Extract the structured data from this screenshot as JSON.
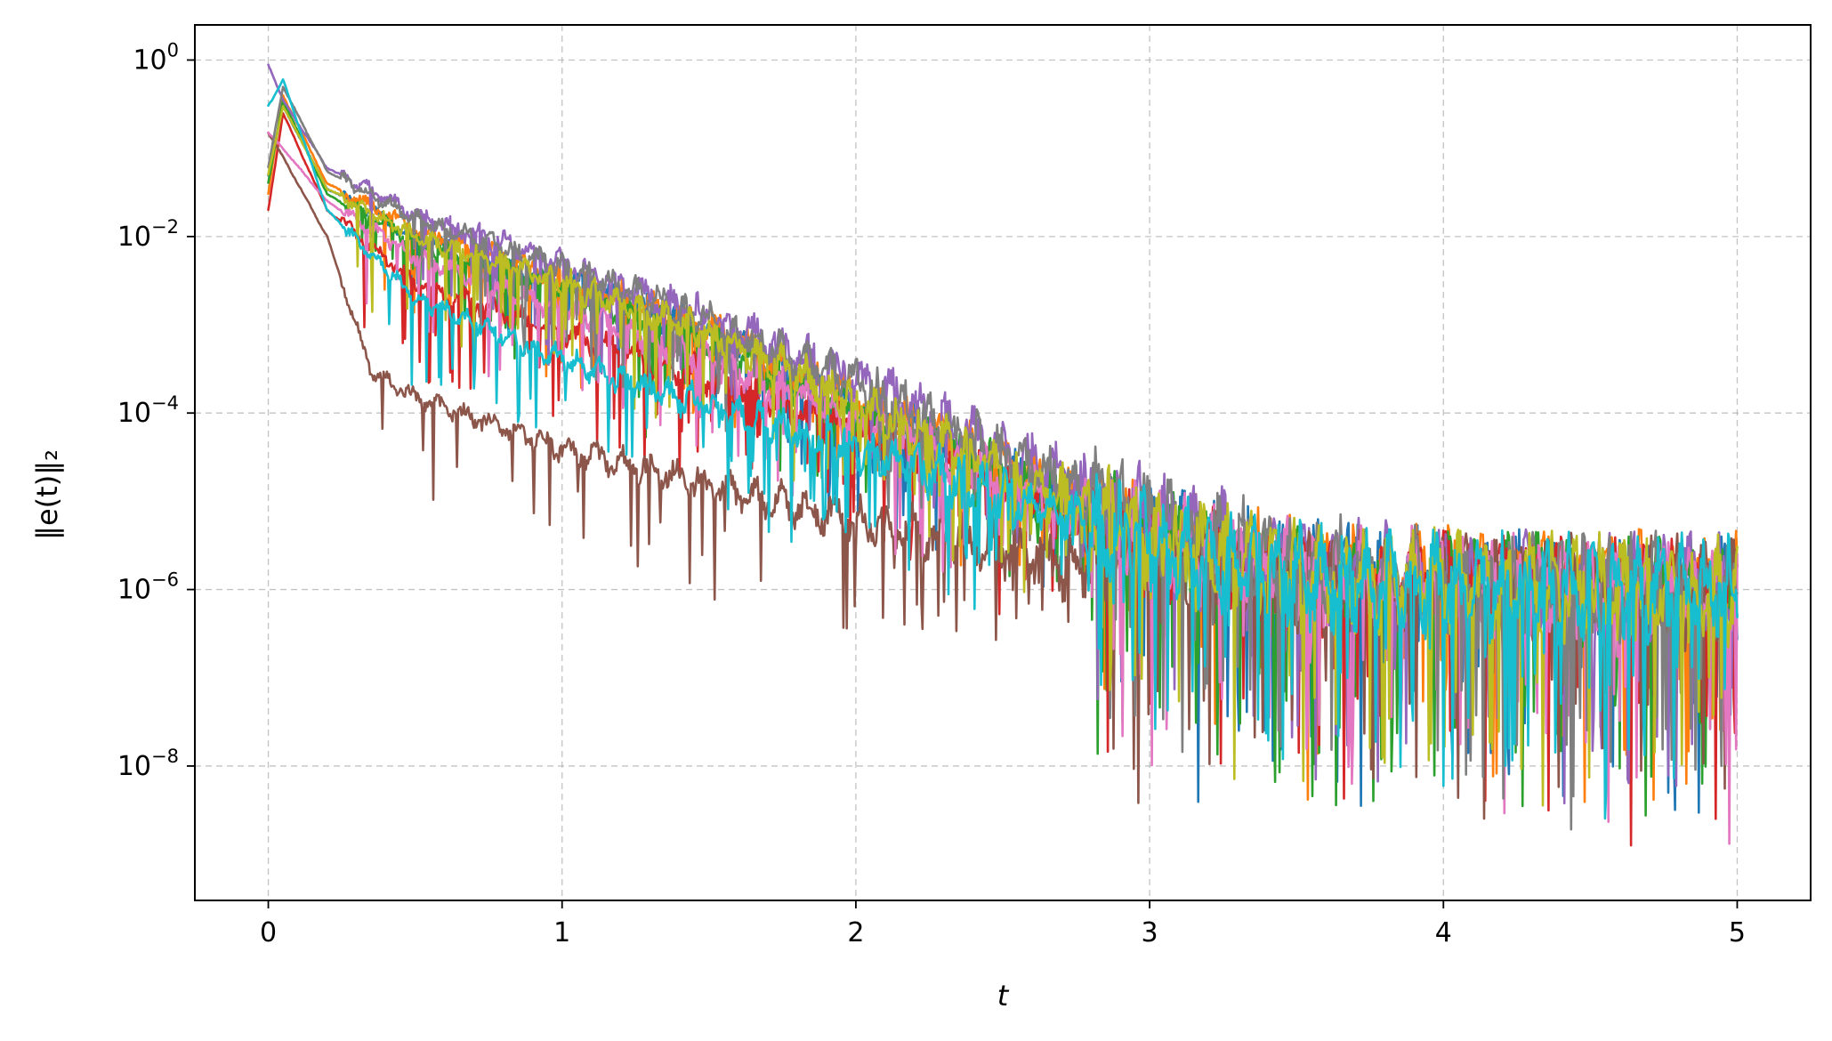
{
  "chart_data": {
    "type": "line",
    "title": "",
    "xlabel": "t",
    "ylabel": "‖e(t)‖₂",
    "xlim": [
      -0.25,
      5.25
    ],
    "ylim": [
      3e-10,
      2.5
    ],
    "x_ticks": [
      0,
      1,
      2,
      3,
      4,
      5
    ],
    "y_ticks": [
      {
        "value": 1.0,
        "base": "10",
        "exp": "0"
      },
      {
        "value": 0.01,
        "base": "10",
        "exp": "−2"
      },
      {
        "value": 0.0001,
        "base": "10",
        "exp": "−4"
      },
      {
        "value": 1e-06,
        "base": "10",
        "exp": "−6"
      },
      {
        "value": 1e-08,
        "base": "10",
        "exp": "−8"
      }
    ],
    "yscale": "log",
    "grid": true,
    "legend": "none",
    "series_params_note_absent": null,
    "series": [
      {
        "color": "#1f77b4",
        "x": [
          0,
          0.05,
          0.2,
          0.5,
          1.0,
          1.5,
          2.0,
          2.5,
          3.0,
          3.5,
          4.0,
          4.5,
          5.0
        ],
        "y": [
          0.05,
          0.3,
          0.035,
          0.01,
          0.003,
          0.0008,
          0.00012,
          2e-05,
          4e-06,
          1.5e-06,
          1.2e-06,
          1e-06,
          1e-06
        ]
      },
      {
        "color": "#ff7f0e",
        "x": [
          0,
          0.05,
          0.2,
          0.5,
          1.0,
          1.5,
          2.0,
          2.5,
          3.0,
          3.5,
          4.0,
          4.5,
          5.0
        ],
        "y": [
          0.03,
          0.4,
          0.04,
          0.012,
          0.0035,
          0.0009,
          0.00015,
          2.5e-05,
          4e-06,
          1.5e-06,
          1.3e-06,
          1.2e-06,
          1.1e-06
        ]
      },
      {
        "color": "#2ca02c",
        "x": [
          0,
          0.05,
          0.2,
          0.5,
          1.0,
          1.5,
          2.0,
          2.5,
          3.0,
          3.5,
          4.0,
          4.5,
          5.0
        ],
        "y": [
          0.04,
          0.35,
          0.03,
          0.009,
          0.0025,
          0.0006,
          0.0001,
          2e-05,
          3.5e-06,
          1.4e-06,
          1.1e-06,
          1e-06,
          9e-07
        ]
      },
      {
        "color": "#d62728",
        "x": [
          0,
          0.05,
          0.2,
          0.5,
          1.0,
          1.5,
          2.0,
          2.5,
          3.0,
          3.5,
          4.0,
          4.5,
          5.0
        ],
        "y": [
          0.02,
          0.25,
          0.02,
          0.003,
          0.0008,
          0.00025,
          6e-05,
          1.5e-05,
          3e-06,
          1.4e-06,
          1.2e-06,
          1e-06,
          1e-06
        ]
      },
      {
        "color": "#9467bd",
        "x": [
          0,
          0.05,
          0.2,
          0.5,
          1.0,
          1.5,
          2.0,
          2.5,
          3.0,
          3.5,
          4.0,
          4.5,
          5.0
        ],
        "y": [
          0.9,
          0.35,
          0.06,
          0.018,
          0.005,
          0.0012,
          0.00025,
          4e-05,
          6e-06,
          1.8e-06,
          1.3e-06,
          1.1e-06,
          1e-06
        ]
      },
      {
        "color": "#8c564b",
        "x": [
          0,
          0.05,
          0.2,
          0.35,
          0.5,
          1.0,
          1.5,
          2.0,
          2.5,
          3.0,
          3.5,
          4.0,
          4.5,
          5.0
        ],
        "y": [
          0.15,
          0.08,
          0.01,
          0.0003,
          0.00015,
          4e-05,
          1.5e-05,
          6e-06,
          3e-06,
          1.5e-06,
          1.2e-06,
          1e-06,
          1e-06,
          1e-06
        ]
      },
      {
        "color": "#e377c2",
        "x": [
          0,
          0.05,
          0.2,
          0.5,
          1.0,
          1.5,
          2.0,
          2.5,
          3.0,
          3.5,
          4.0,
          4.5,
          5.0
        ],
        "y": [
          0.15,
          0.1,
          0.025,
          0.006,
          0.0015,
          0.0004,
          8e-05,
          1.8e-05,
          3.5e-06,
          1.5e-06,
          1.2e-06,
          1e-06,
          1e-06
        ]
      },
      {
        "color": "#7f7f7f",
        "x": [
          0,
          0.05,
          0.2,
          0.5,
          1.0,
          1.5,
          2.0,
          2.5,
          3.0,
          3.5,
          4.0,
          4.5,
          5.0
        ],
        "y": [
          0.06,
          0.5,
          0.055,
          0.016,
          0.0045,
          0.0011,
          0.00022,
          3.5e-05,
          5.5e-06,
          1.7e-06,
          1.3e-06,
          1.1e-06,
          1e-06
        ]
      },
      {
        "color": "#bcbd22",
        "x": [
          0,
          0.05,
          0.2,
          0.5,
          1.0,
          1.5,
          2.0,
          2.5,
          3.0,
          3.5,
          4.0,
          4.5,
          5.0
        ],
        "y": [
          0.05,
          0.3,
          0.035,
          0.01,
          0.003,
          0.0008,
          0.00013,
          2.2e-05,
          4e-06,
          1.5e-06,
          1.2e-06,
          1e-06,
          1e-06
        ]
      },
      {
        "color": "#17becf",
        "x": [
          0,
          0.05,
          0.2,
          0.5,
          1.0,
          1.5,
          2.0,
          2.5,
          3.0,
          3.5,
          4.0,
          4.5,
          5.0
        ],
        "y": [
          0.3,
          0.6,
          0.02,
          0.002,
          0.0004,
          0.00012,
          4e-05,
          1.2e-05,
          3.5e-06,
          1.4e-06,
          1.1e-06,
          1e-06,
          1e-06
        ]
      }
    ]
  }
}
